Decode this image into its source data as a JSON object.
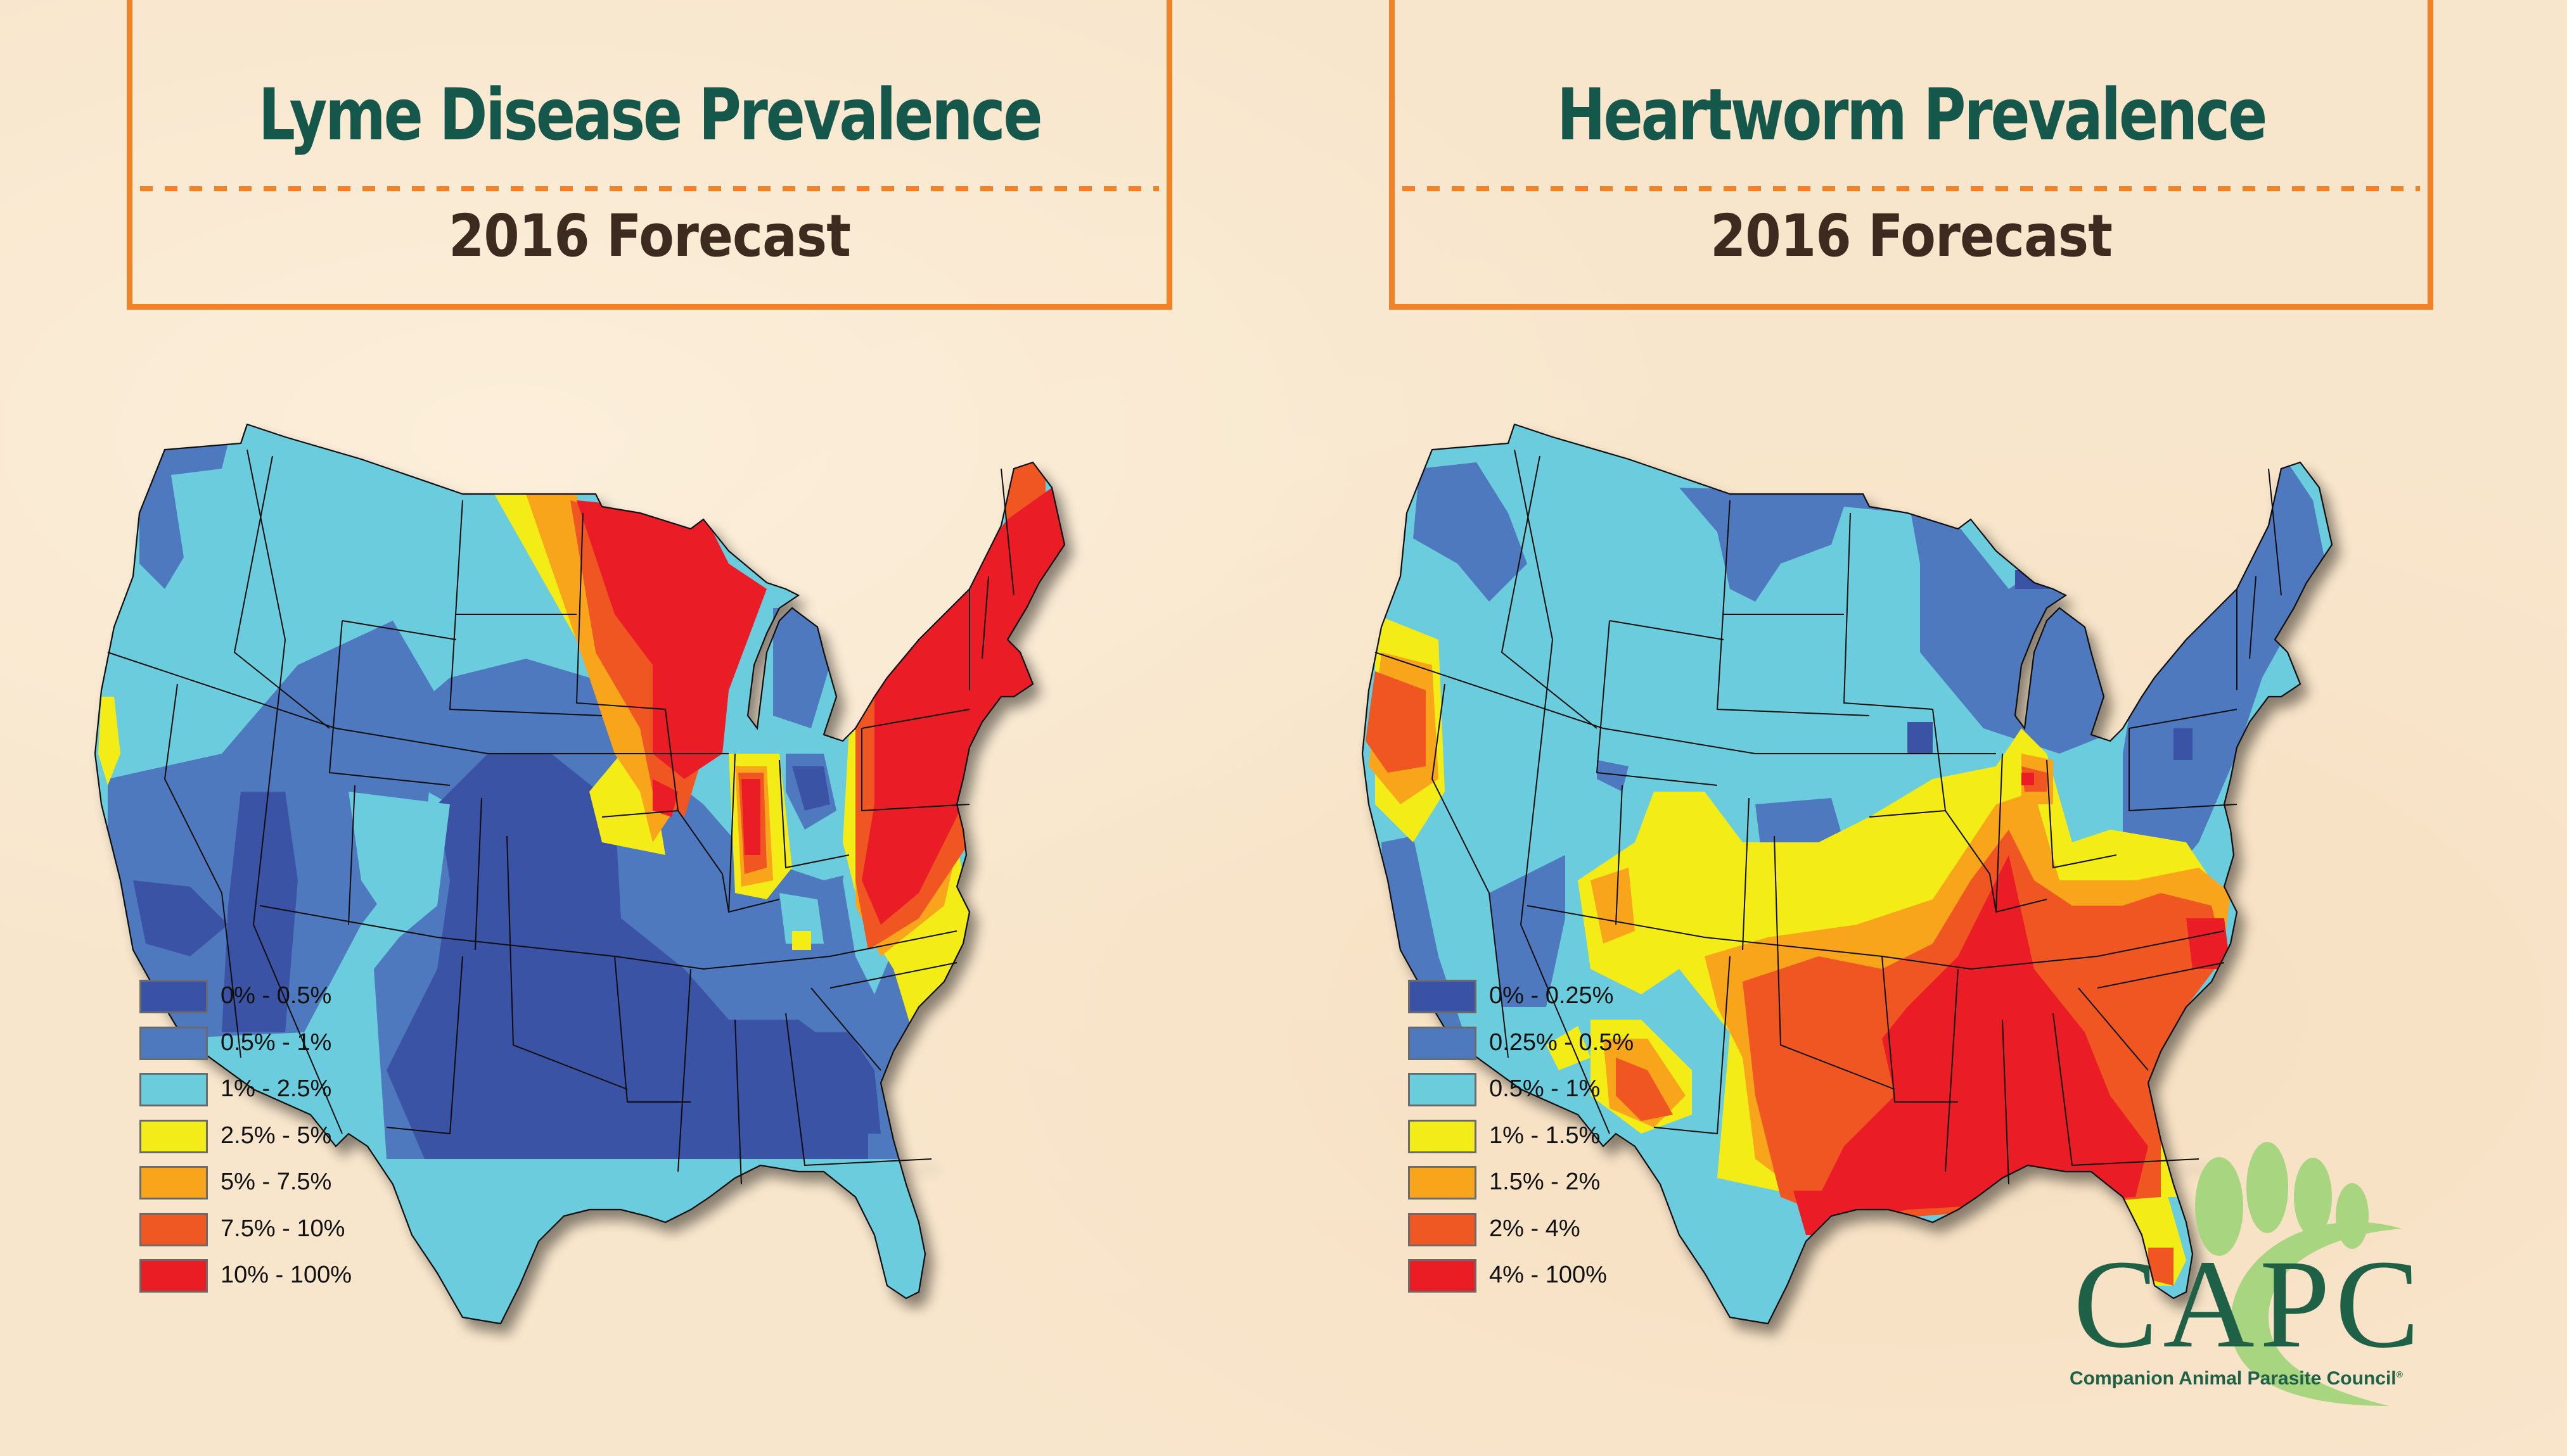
{
  "panels": [
    {
      "id": "lyme",
      "title": "Lyme Disease Prevalence",
      "subtitle": "2016 Forecast",
      "map_label": "Lyme disease prevalence map of the contiguous United States",
      "legend": [
        {
          "label": "0% - 0.5%",
          "color": "#3a52a5"
        },
        {
          "label": "0.5% - 1%",
          "color": "#4f79be"
        },
        {
          "label": "1% - 2.5%",
          "color": "#6bccdc"
        },
        {
          "label": "2.5% - 5%",
          "color": "#f4ec19"
        },
        {
          "label": "5% - 7.5%",
          "color": "#f8a51b"
        },
        {
          "label": "7.5% - 10%",
          "color": "#ef5723"
        },
        {
          "label": "10% - 100%",
          "color": "#ea1d25"
        }
      ]
    },
    {
      "id": "heartworm",
      "title": "Heartworm Prevalence",
      "subtitle": "2016 Forecast",
      "map_label": "Heartworm prevalence map of the contiguous United States",
      "legend": [
        {
          "label": "0% - 0.25%",
          "color": "#3a52a5"
        },
        {
          "label": "0.25% - 0.5%",
          "color": "#4f79be"
        },
        {
          "label": "0.5% - 1%",
          "color": "#6bccdc"
        },
        {
          "label": "1% - 1.5%",
          "color": "#f4ec19"
        },
        {
          "label": "1.5% - 2%",
          "color": "#f8a51b"
        },
        {
          "label": "2% - 4%",
          "color": "#ef5723"
        },
        {
          "label": "4% - 100%",
          "color": "#ea1d25"
        }
      ]
    }
  ],
  "logo": {
    "letters": "CAPC",
    "tagline": "Companion Animal Parasite Council",
    "registered": "®",
    "paw_color": "#a8d57f",
    "text_color": "#1f6147"
  },
  "colors": {
    "background": "#f8e6cc",
    "frame": "#f08228",
    "title": "#15574a",
    "subtitle": "#3d2b1f"
  }
}
